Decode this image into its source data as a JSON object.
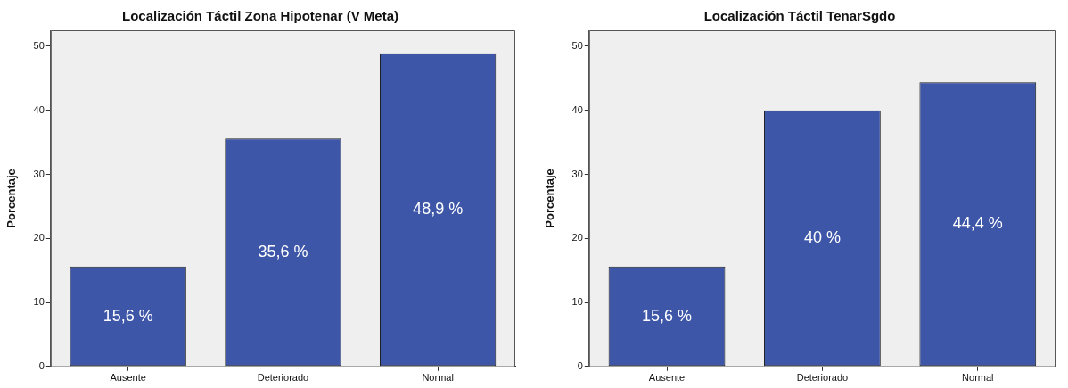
{
  "chart_data": [
    {
      "type": "bar",
      "title": "Localización Táctil Zona Hipotenar (V Meta)",
      "ylabel": "Porcentaje",
      "categories": [
        "Ausente",
        "Deteriorado",
        "Normal"
      ],
      "values": [
        15.6,
        35.6,
        48.9
      ],
      "value_labels": [
        "15,6 %",
        "35,6 %",
        "48,9 %"
      ],
      "color": "#3d56a8",
      "ylim": [
        0,
        52.5
      ],
      "yticks": [
        0,
        10,
        20,
        30,
        40,
        50
      ]
    },
    {
      "type": "bar",
      "title": "Localización Táctil TenarSgdo",
      "ylabel": "Porcentaje",
      "categories": [
        "Ausente",
        "Deteriorado",
        "Normal"
      ],
      "values": [
        15.6,
        40,
        44.4
      ],
      "value_labels": [
        "15,6 %",
        "40 %",
        "44,4 %"
      ],
      "color": "#3d56a8",
      "ylim": [
        0,
        52.5
      ],
      "yticks": [
        0,
        10,
        20,
        30,
        40,
        50
      ]
    }
  ]
}
